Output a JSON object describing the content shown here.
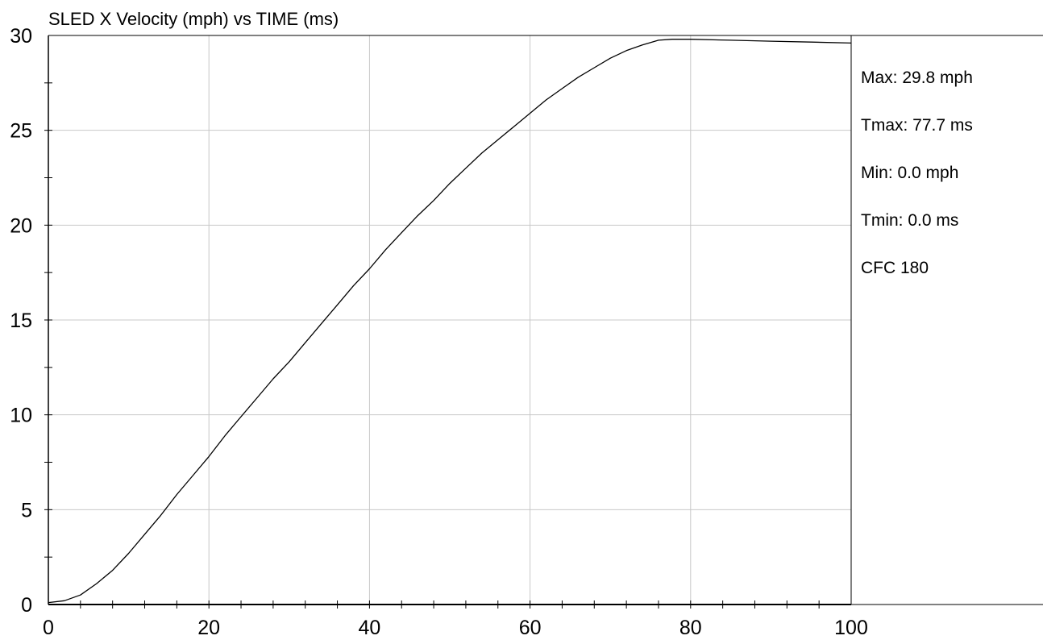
{
  "chart_data": {
    "type": "line",
    "title": "SLED X Velocity (mph) vs TIME (ms)",
    "xlabel": "",
    "ylabel": "",
    "xlim": [
      0,
      100
    ],
    "ylim": [
      0,
      30
    ],
    "x_ticks": [
      0,
      20,
      40,
      60,
      80,
      100
    ],
    "y_ticks": [
      0,
      5,
      10,
      15,
      20,
      25,
      30
    ],
    "x_minor_step": 4,
    "y_minor_step": 2.5,
    "grid": true,
    "series": [
      {
        "name": "",
        "color": "#000000",
        "x": [
          0,
          2,
          4,
          6,
          8,
          10,
          12,
          14,
          16,
          18,
          20,
          22,
          24,
          26,
          28,
          30,
          32,
          34,
          36,
          38,
          40,
          42,
          44,
          46,
          48,
          50,
          52,
          54,
          56,
          58,
          60,
          62,
          64,
          66,
          68,
          70,
          72,
          74,
          76,
          77.7,
          80,
          85,
          90,
          95,
          100
        ],
        "y": [
          0.1,
          0.2,
          0.5,
          1.1,
          1.8,
          2.7,
          3.7,
          4.7,
          5.8,
          6.8,
          7.8,
          8.9,
          9.9,
          10.9,
          11.9,
          12.8,
          13.8,
          14.8,
          15.8,
          16.8,
          17.7,
          18.7,
          19.6,
          20.5,
          21.3,
          22.2,
          23.0,
          23.8,
          24.5,
          25.2,
          25.9,
          26.6,
          27.2,
          27.8,
          28.3,
          28.8,
          29.2,
          29.5,
          29.75,
          29.8,
          29.8,
          29.75,
          29.7,
          29.65,
          29.6
        ]
      }
    ],
    "annotations": [
      "Max: 29.8 mph",
      "Tmax: 77.7 ms",
      "Min: 0.0 mph",
      "Tmin: 0.0 ms",
      "CFC 180"
    ]
  }
}
